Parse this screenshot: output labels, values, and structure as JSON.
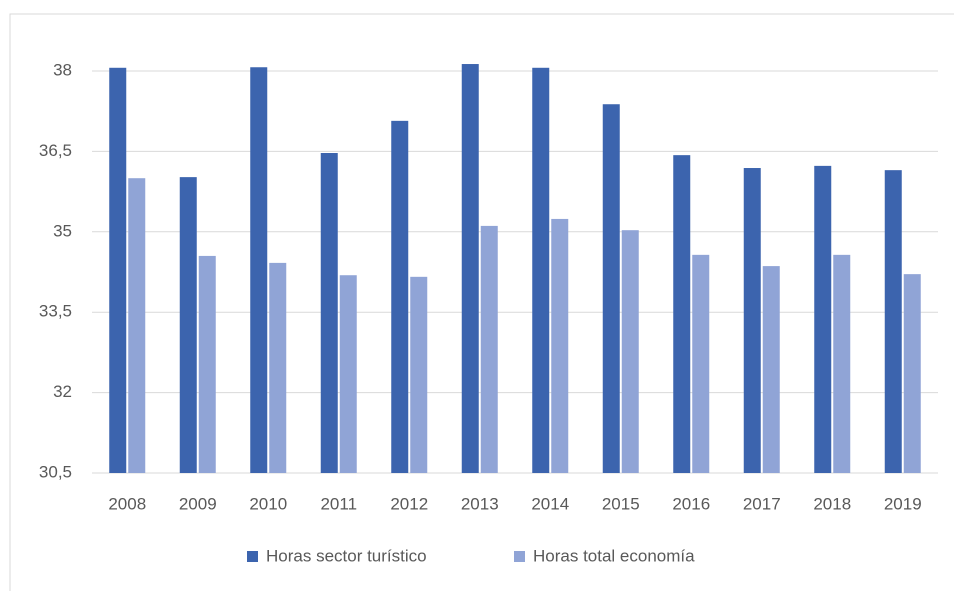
{
  "chart_data": {
    "type": "bar",
    "categories": [
      "2008",
      "2009",
      "2010",
      "2011",
      "2012",
      "2013",
      "2014",
      "2015",
      "2016",
      "2017",
      "2018",
      "2019"
    ],
    "series": [
      {
        "name": "Horas sector turístico",
        "color": "#3c64ae",
        "values": [
          38.06,
          36.02,
          38.07,
          36.47,
          37.07,
          38.13,
          38.06,
          37.38,
          36.43,
          36.19,
          36.23,
          36.15
        ]
      },
      {
        "name": "Horas total economía",
        "color": "#90a4d6",
        "values": [
          36.0,
          34.55,
          34.42,
          34.19,
          34.16,
          35.11,
          35.24,
          35.03,
          34.57,
          34.36,
          34.57,
          34.21
        ]
      }
    ],
    "ylim": [
      30.5,
      38.5
    ],
    "yticks": [
      {
        "value": 30.5,
        "label": "30,5"
      },
      32,
      {
        "value": 33.5,
        "label": "33,5"
      },
      35,
      {
        "value": 36.5,
        "label": "36,5"
      },
      38
    ],
    "grid": true,
    "legend": "bottom"
  }
}
